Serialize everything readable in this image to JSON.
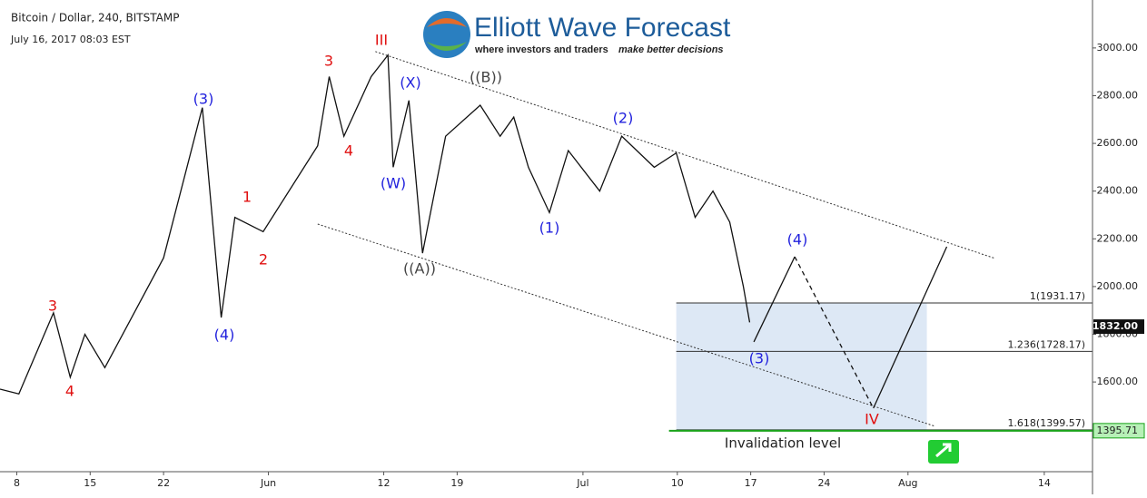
{
  "chart_data": {
    "type": "line",
    "title": "Bitcoin / Dollar, 240, BITSTAMP",
    "subtitle": "July 16, 2017 08:03 EST",
    "logo": {
      "name": "Elliott Wave Forecast",
      "tagline": "where investors and traders",
      "tagline_bold": "make better decisions"
    },
    "xlim": [
      -1.6,
      102.6
    ],
    "ylim": [
      1224,
      3201
    ],
    "xticks": [
      {
        "value": 0,
        "label": "8"
      },
      {
        "value": 7,
        "label": "15"
      },
      {
        "value": 14,
        "label": "22"
      },
      {
        "value": 24,
        "label": "Jun"
      },
      {
        "value": 35,
        "label": "12"
      },
      {
        "value": 42,
        "label": "19"
      },
      {
        "value": 54,
        "label": "Jul"
      },
      {
        "value": 63,
        "label": "10"
      },
      {
        "value": 70,
        "label": "17"
      },
      {
        "value": 77,
        "label": "24"
      },
      {
        "value": 85,
        "label": "Aug"
      },
      {
        "value": 98,
        "label": "14"
      }
    ],
    "yticks": [
      {
        "value": 1600,
        "label": "1600.00"
      },
      {
        "value": 1800,
        "label": "1800.00"
      },
      {
        "value": 2000,
        "label": "2000.00"
      },
      {
        "value": 2200,
        "label": "2200.00"
      },
      {
        "value": 2400,
        "label": "2400.00"
      },
      {
        "value": 2600,
        "label": "2600.00"
      },
      {
        "value": 2800,
        "label": "2800.00"
      },
      {
        "value": 3000,
        "label": "3000.00"
      }
    ],
    "grid": false,
    "series": [
      {
        "color": "#111111",
        "x": [
          -1.6,
          0.2,
          3.5,
          5.1,
          6.5,
          8.4,
          14,
          17.7,
          19.5,
          20.8,
          23.5,
          28.7,
          29.8,
          31.2,
          33.8,
          35.4,
          35.9,
          37.4,
          38.7,
          40.9,
          44.2,
          46.1,
          47.4,
          48.8,
          50.8,
          52.6,
          55.6,
          57.7,
          60.8,
          62.9,
          64.7,
          66.4,
          68,
          69.3,
          69.9
        ],
        "values": [
          1570,
          1550,
          1890,
          1620,
          1800,
          1660,
          2120,
          2750,
          1870,
          2290,
          2230,
          2590,
          2880,
          2630,
          2880,
          2970,
          2500,
          2780,
          2140,
          2630,
          2760,
          2630,
          2710,
          2500,
          2310,
          2570,
          2400,
          2630,
          2500,
          2560,
          2290,
          2400,
          2270,
          2000,
          1850
        ]
      }
    ],
    "channel": [
      {
        "x": [
          34.2,
          93.3
        ],
        "values": [
          2985,
          2118
        ]
      },
      {
        "x": [
          28.7,
          87.6
        ],
        "values": [
          2262,
          1414
        ]
      }
    ],
    "projection": {
      "x": [
        70.3,
        74.2,
        81.7,
        88.7
      ],
      "values": [
        1768,
        2125,
        1490,
        2167
      ],
      "styles": [
        "solid",
        "dashed",
        "solid"
      ]
    },
    "fib_levels": [
      {
        "label": "1(1931.17)",
        "value": 1931.17
      },
      {
        "label": "1.236(1728.17)",
        "value": 1728.17
      },
      {
        "label": "1.618(1399.57)",
        "value": 1399.57
      }
    ],
    "target_box": {
      "x": [
        62.9,
        86.8
      ],
      "values": [
        1931.17,
        1399.57
      ],
      "color": "#dde8f5"
    },
    "invalidation": {
      "label": "Invalidation level",
      "tag": {
        "value": 1395.71,
        "label": "1395.71"
      },
      "color": "#1aa31a"
    },
    "price_tag": {
      "value": 1832,
      "label": "1832.00"
    },
    "annotations": [
      {
        "text": "III",
        "color": "#e01010"
      },
      {
        "text": "3",
        "color": "#e01010"
      },
      {
        "text": "4",
        "color": "#e01010"
      },
      {
        "text": "1",
        "color": "#e01010"
      },
      {
        "text": "2",
        "color": "#e01010"
      },
      {
        "text": "3",
        "color": "#e01010"
      },
      {
        "text": "4",
        "color": "#e01010"
      },
      {
        "text": "(3)",
        "color": "#2222dd"
      },
      {
        "text": "(4)",
        "color": "#2222dd"
      },
      {
        "text": "(X)",
        "color": "#2222dd"
      },
      {
        "text": "(W)",
        "color": "#2222dd"
      },
      {
        "text": "((B))",
        "color": "#444444"
      },
      {
        "text": "((A))",
        "color": "#444444"
      },
      {
        "text": "(2)",
        "color": "#2222dd"
      },
      {
        "text": "(1)",
        "color": "#2222dd"
      },
      {
        "text": "(4)",
        "color": "#2222dd"
      },
      {
        "text": "(3)",
        "color": "#2222dd"
      },
      {
        "text": "IV",
        "color": "#e01010"
      }
    ]
  }
}
